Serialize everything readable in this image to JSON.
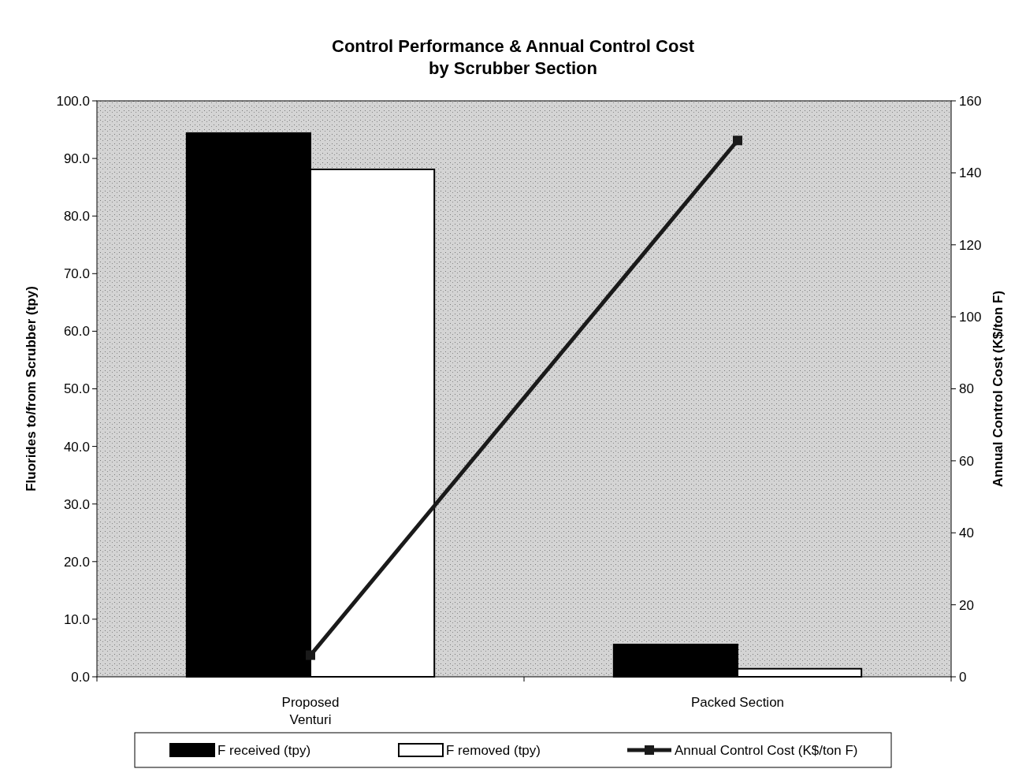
{
  "chart_data": {
    "type": "bar",
    "title": "Control Performance & Annual Control Cost\nby Scrubber Section",
    "ylabel": "Fluorides to/from Scrubber (tpy)",
    "y2label": "Annual Control Cost (K$/ton F)",
    "categories": [
      "Proposed\nVenturi",
      "Packed Section"
    ],
    "series": [
      {
        "name": "F received (tpy)",
        "color": "#000000",
        "values": [
          94.4,
          5.6
        ]
      },
      {
        "name": "F removed (tpy)",
        "color": "#ffffff",
        "values": [
          88.1,
          1.4
        ]
      },
      {
        "name": "Annual Control Cost (K$/ton F)",
        "type": "line",
        "axis": "y2",
        "color": "#1a1a1a",
        "values": [
          6,
          149
        ],
        "marker": "square"
      }
    ],
    "ylim": [
      0,
      100
    ],
    "yticks": [
      {
        "value": 0,
        "label": "0.0"
      },
      {
        "value": 10,
        "label": "10.0"
      },
      {
        "value": 20,
        "label": "20.0"
      },
      {
        "value": 30,
        "label": "30.0"
      },
      {
        "value": 40,
        "label": "40.0"
      },
      {
        "value": 50,
        "label": "50.0"
      },
      {
        "value": 60,
        "label": "60.0"
      },
      {
        "value": 70,
        "label": "70.0"
      },
      {
        "value": 80,
        "label": "80.0"
      },
      {
        "value": 90,
        "label": "90.0"
      },
      {
        "value": 100,
        "label": "100.0"
      }
    ],
    "y2lim": [
      0,
      160
    ],
    "y2ticks": [
      0,
      20,
      40,
      60,
      80,
      100,
      120,
      140,
      160
    ],
    "legend": "bottom",
    "grid": false
  }
}
